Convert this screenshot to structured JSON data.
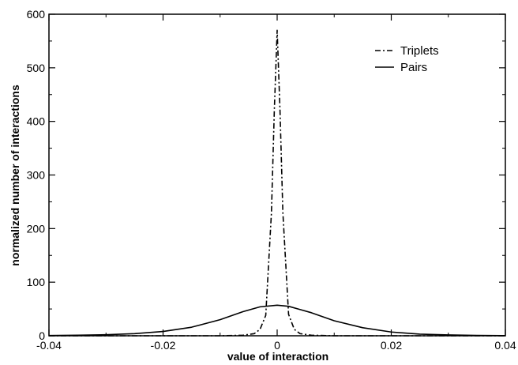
{
  "chart_data": {
    "type": "line",
    "title": "",
    "xlabel": "value of interaction",
    "ylabel": "normalized number of interactions",
    "xlim": [
      -0.04,
      0.04
    ],
    "ylim": [
      0,
      600
    ],
    "x_ticks": [
      "-0.04",
      "-0.02",
      "0",
      "0.02",
      "0.04"
    ],
    "y_ticks": [
      "0",
      "100",
      "200",
      "300",
      "400",
      "500",
      "600"
    ],
    "grid": false,
    "legend_position": "top-right",
    "series": [
      {
        "name": "Triplets",
        "style": "dash-dot",
        "x": [
          -0.04,
          -0.01,
          -0.006,
          -0.004,
          -0.003,
          -0.002,
          -0.001,
          -0.0005,
          0,
          0.0005,
          0.001,
          0.002,
          0.003,
          0.004,
          0.006,
          0.01,
          0.04
        ],
        "y": [
          0,
          0,
          1,
          4,
          12,
          38,
          230,
          420,
          570,
          420,
          230,
          40,
          12,
          4,
          1,
          0,
          0
        ]
      },
      {
        "name": "Pairs",
        "style": "solid",
        "x": [
          -0.04,
          -0.035,
          -0.03,
          -0.025,
          -0.02,
          -0.015,
          -0.01,
          -0.006,
          -0.003,
          0,
          0.002,
          0.004,
          0.006,
          0.01,
          0.015,
          0.02,
          0.025,
          0.03,
          0.035,
          0.04
        ],
        "y": [
          0.5,
          1,
          2,
          4,
          8,
          16,
          30,
          45,
          54,
          57,
          55,
          49,
          43,
          28,
          15,
          7,
          3,
          1.5,
          0.7,
          0.3
        ]
      }
    ]
  }
}
